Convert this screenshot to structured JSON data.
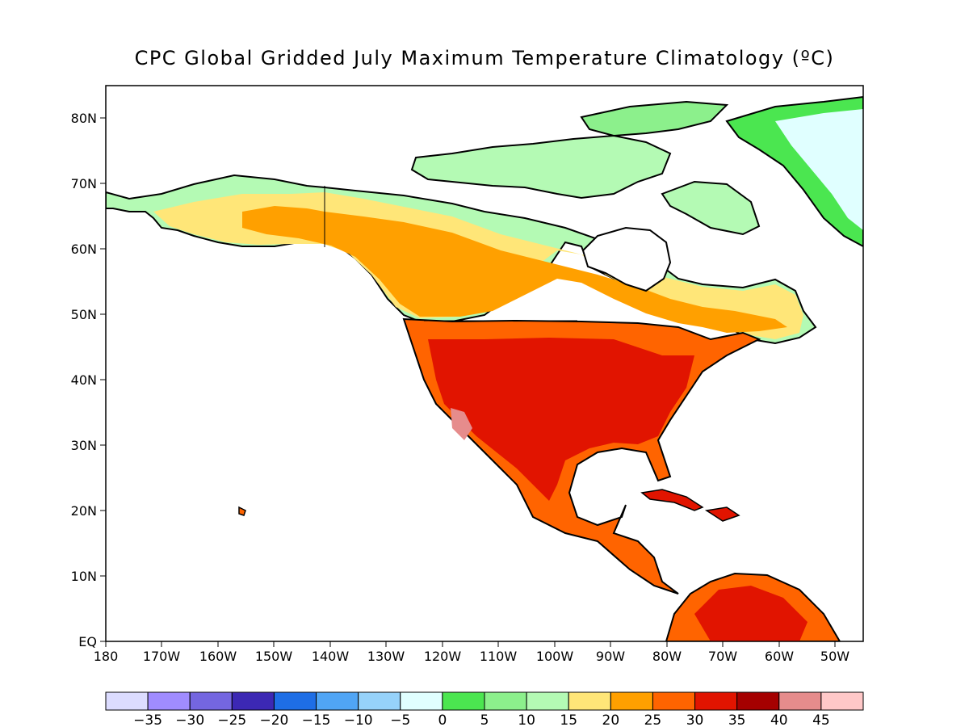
{
  "title": "CPC Global Gridded July Maximum Temperature Climatology (ºC)",
  "lat_labels": [
    "EQ",
    "10N",
    "20N",
    "30N",
    "40N",
    "50N",
    "60N",
    "70N",
    "80N"
  ],
  "lon_labels": [
    "180",
    "170W",
    "160W",
    "150W",
    "140W",
    "130W",
    "120W",
    "110W",
    "100W",
    "90W",
    "80W",
    "70W",
    "60W",
    "50W"
  ],
  "colorbar": {
    "labels": [
      "−35",
      "−30",
      "−25",
      "−20",
      "−15",
      "−10",
      "−5",
      "0",
      "5",
      "10",
      "15",
      "20",
      "25",
      "30",
      "35",
      "40",
      "45"
    ],
    "colors": [
      "#dcdcff",
      "#a08cff",
      "#7466e0",
      "#3c28b4",
      "#1e6ee6",
      "#50a5f5",
      "#96d2fa",
      "#e0ffff",
      "#4be650",
      "#8cf08c",
      "#b4fab4",
      "#ffe678",
      "#ffa000",
      "#ff6400",
      "#e11400",
      "#a50000",
      "#e68c8c",
      "#ffc8c8"
    ]
  },
  "colors": {
    "ocean": "#ffffff",
    "hudson_bay": "#ffffff",
    "ice_sheet": "#e0ffff",
    "coast": "#000000"
  }
}
